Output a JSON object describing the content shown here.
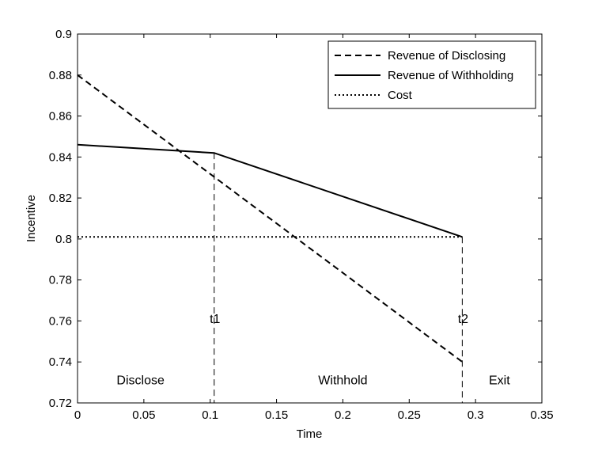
{
  "chart_data": {
    "type": "line",
    "title": "",
    "xlabel": "Time",
    "ylabel": "Incentive",
    "xlim": [
      0,
      0.35
    ],
    "ylim": [
      0.72,
      0.9
    ],
    "x_ticks": [
      0,
      0.05,
      0.1,
      0.15,
      0.2,
      0.25,
      0.3,
      0.35
    ],
    "x_tick_labels": [
      "0",
      "0.05",
      "0.1",
      "0.15",
      "0.2",
      "0.25",
      "0.3",
      "0.35"
    ],
    "y_ticks": [
      0.72,
      0.74,
      0.76,
      0.78,
      0.8,
      0.82,
      0.84,
      0.86,
      0.88,
      0.9
    ],
    "y_tick_labels": [
      "0.72",
      "0.74",
      "0.76",
      "0.78",
      "0.8",
      "0.82",
      "0.84",
      "0.86",
      "0.88",
      "0.9"
    ],
    "grid": false,
    "legend_position": "top-right",
    "series": [
      {
        "name": "Revenue of Disclosing",
        "style": "dashed",
        "color": "#000000",
        "points": [
          [
            0,
            0.88
          ],
          [
            0.29,
            0.74
          ]
        ]
      },
      {
        "name": "Revenue of Withholding",
        "style": "solid",
        "color": "#000000",
        "points": [
          [
            0,
            0.846
          ],
          [
            0.103,
            0.842
          ],
          [
            0.29,
            0.801
          ]
        ]
      },
      {
        "name": "Cost",
        "style": "dotted",
        "color": "#000000",
        "points": [
          [
            0,
            0.801
          ],
          [
            0.29,
            0.801
          ]
        ]
      }
    ],
    "vertical_markers": [
      {
        "label": "t1",
        "x": 0.103,
        "y_top": 0.842,
        "label_y": 0.759
      },
      {
        "label": "t2",
        "x": 0.29,
        "y_top": 0.801,
        "label_y": 0.759
      }
    ],
    "region_labels": [
      {
        "text": "Disclose",
        "x": 0.0475,
        "y": 0.729
      },
      {
        "text": "Withhold",
        "x": 0.2,
        "y": 0.729
      },
      {
        "text": "Exit",
        "x": 0.318,
        "y": 0.729
      }
    ]
  }
}
